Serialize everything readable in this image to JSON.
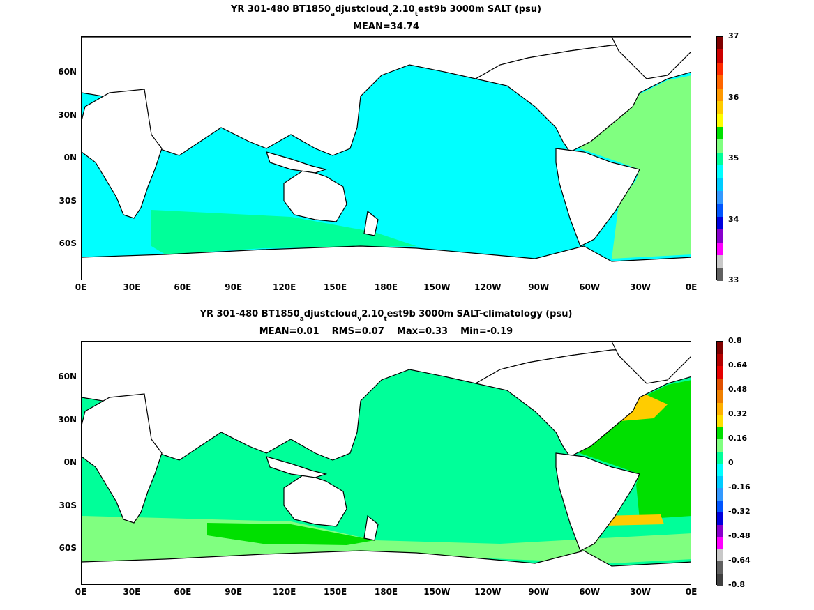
{
  "panels": [
    {
      "title_parts": [
        "YR 301-480 BT1850",
        "a",
        "djustcloud",
        "v",
        "2.10",
        "t",
        "est9b 3000m SALT (psu)"
      ],
      "stats": "MEAN=34.74",
      "colorbar": {
        "ticks": [
          "37",
          "36",
          "35",
          "34",
          "33"
        ],
        "colors": [
          "#7f0000",
          "#cc0000",
          "#ff2a00",
          "#ff6600",
          "#ff9900",
          "#ffcc00",
          "#ffff00",
          "#00e000",
          "#80ff80",
          "#00ff99",
          "#00ffff",
          "#00ccff",
          "#3399ff",
          "#0055ff",
          "#0000dd",
          "#8800cc",
          "#ff00ff",
          "#c8c8c8",
          "#606060"
        ]
      }
    },
    {
      "title_parts": [
        "YR 301-480 BT1850",
        "a",
        "djustcloud",
        "v",
        "2.10",
        "t",
        "est9b 3000m SALT-climatology (psu)"
      ],
      "stats": "MEAN=0.01    RMS=0.07    Max=0.33    Min=-0.19",
      "colorbar": {
        "ticks": [
          "0.8",
          "0.64",
          "0.48",
          "0.32",
          "0.16",
          "0",
          "-0.16",
          "-0.32",
          "-0.48",
          "-0.64",
          "-0.8"
        ],
        "colors": [
          "#7f0000",
          "#b30000",
          "#e60000",
          "#e05000",
          "#f08000",
          "#ffb000",
          "#ffe000",
          "#00e000",
          "#80ff80",
          "#00ff99",
          "#00ffff",
          "#00ccff",
          "#3399ff",
          "#0055ff",
          "#0000dd",
          "#8800cc",
          "#ff00ff",
          "#c8c8c8",
          "#606060",
          "#404040"
        ]
      }
    }
  ],
  "axes": {
    "x_ticks": [
      "0E",
      "30E",
      "60E",
      "90E",
      "120E",
      "150E",
      "180E",
      "150W",
      "120W",
      "90W",
      "60W",
      "30W",
      "0E"
    ],
    "y_ticks": [
      "60N",
      "30N",
      "0N",
      "30S",
      "60S"
    ]
  },
  "colors": {
    "ocean_top": "#00ffff",
    "ocean_atlantic_top": "#80ff80",
    "ocean_bottom": "#00ff99",
    "anomaly_positive": "#00e000",
    "anomaly_high": "#ffcc00",
    "anomaly_south": "#80ff80",
    "land": "#ffffff"
  }
}
